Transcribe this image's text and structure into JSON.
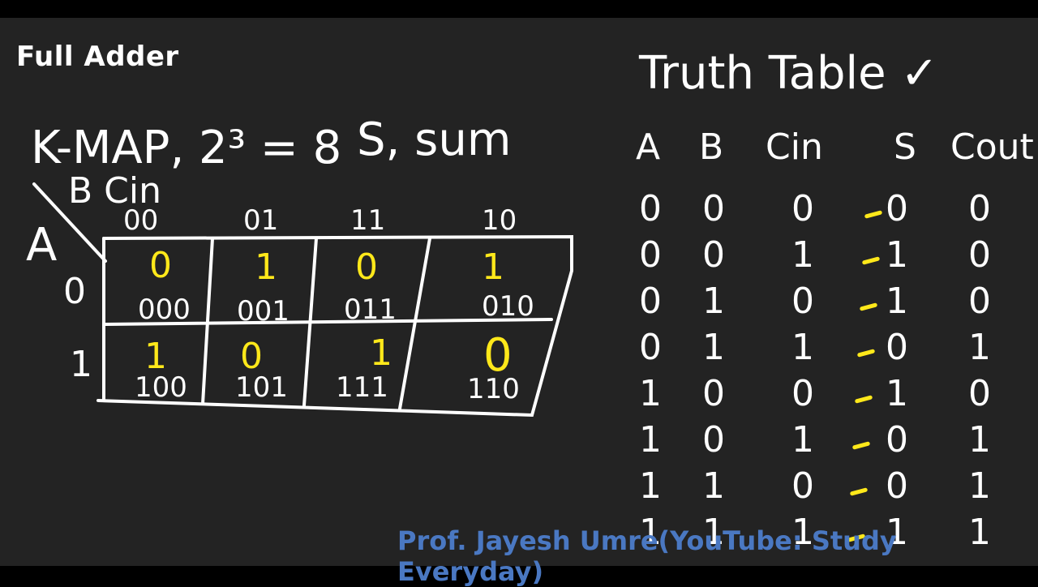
{
  "heading": "Full Adder",
  "kmap": {
    "title": "K-MAP, 2³ = 8",
    "output_label": "S, sum",
    "row_var": "A",
    "col_var": "B Cin",
    "col_headers": [
      "00",
      "01",
      "11",
      "10"
    ],
    "row_headers": [
      "0",
      "1"
    ],
    "cells": [
      [
        {
          "value": "0",
          "minterm": "000"
        },
        {
          "value": "1",
          "minterm": "001"
        },
        {
          "value": "0",
          "minterm": "011"
        },
        {
          "value": "1",
          "minterm": "010"
        }
      ],
      [
        {
          "value": "1",
          "minterm": "100"
        },
        {
          "value": "0",
          "minterm": "101"
        },
        {
          "value": "1",
          "minterm": "111"
        },
        {
          "value": "0",
          "minterm": "110"
        }
      ]
    ]
  },
  "truth_table": {
    "title": "Truth Table ✓",
    "headers": [
      "A",
      "B",
      "Cin",
      "S",
      "Cout"
    ],
    "rows": [
      [
        "0",
        "0",
        "0",
        "0",
        "0"
      ],
      [
        "0",
        "0",
        "1",
        "1",
        "0"
      ],
      [
        "0",
        "1",
        "0",
        "1",
        "0"
      ],
      [
        "0",
        "1",
        "1",
        "0",
        "1"
      ],
      [
        "1",
        "0",
        "0",
        "1",
        "0"
      ],
      [
        "1",
        "0",
        "1",
        "0",
        "1"
      ],
      [
        "1",
        "1",
        "0",
        "0",
        "1"
      ],
      [
        "1",
        "1",
        "1",
        "1",
        "1"
      ]
    ]
  },
  "credit": "Prof. Jayesh Umre(YouTube: Study Everyday)",
  "colors": {
    "board": "#232323",
    "ink": "#ffffff",
    "highlight": "#ffe81a",
    "credit": "#4a78c2"
  }
}
